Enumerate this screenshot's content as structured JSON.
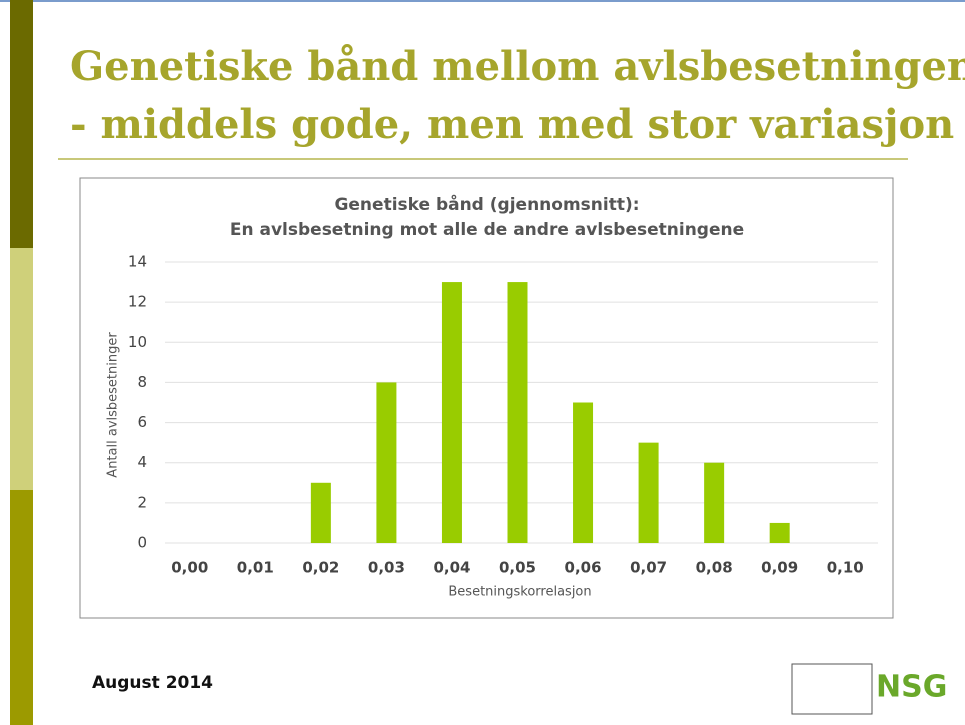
{
  "slide": {
    "title_lines": [
      "Genetiske bånd mellom avlsbesetningene",
      "- middels gode, men med stor variasjon"
    ],
    "footer": "August 2014",
    "logo": "NSG"
  },
  "chart_data": {
    "type": "bar",
    "title": "Genetiske bånd (gjennomsnitt):",
    "subtitle": "En avlsbesetning mot alle de andre avlsbesetningene",
    "x_label": "Besetningskorrelasjon",
    "y_label": "Antall avlsbesetninger",
    "categories": [
      "0,00",
      "0,01",
      "0,02",
      "0,03",
      "0,04",
      "0,05",
      "0,06",
      "0,07",
      "0,08",
      "0,09",
      "0,10"
    ],
    "values": [
      0,
      0,
      3,
      8,
      13,
      13,
      7,
      5,
      4,
      1,
      0
    ],
    "color": "#99cc00",
    "ylim": [
      0,
      14
    ],
    "yticks": [
      0,
      2,
      4,
      6,
      8,
      10,
      12,
      14
    ],
    "grid": true
  }
}
